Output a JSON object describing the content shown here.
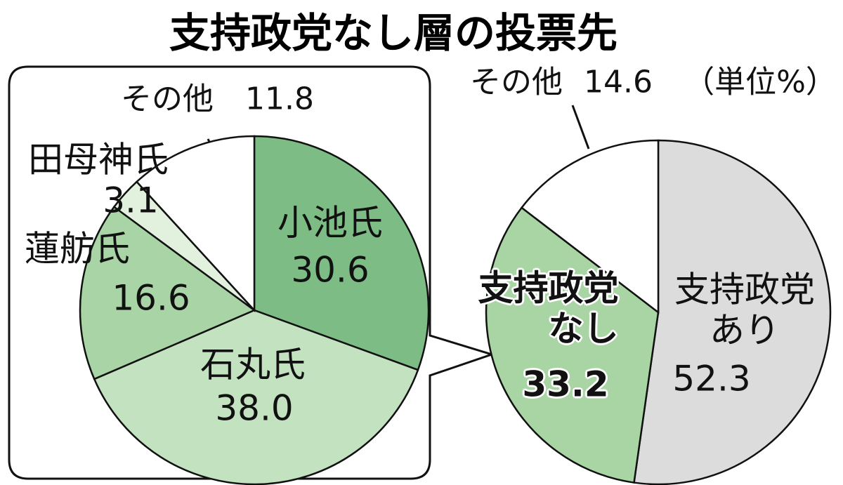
{
  "title": "支持政党なし層の投票先",
  "chart_data": [
    {
      "type": "pie",
      "categories": [
        "小池氏",
        "石丸氏",
        "蓮舫氏",
        "田母神氏",
        "その他"
      ],
      "values": [
        30.6,
        38.0,
        16.6,
        3.1,
        11.8
      ],
      "value_labels": [
        "30.6",
        "38.0",
        "16.6",
        "3.1",
        "11.8"
      ],
      "colors": [
        "#7dbd85",
        "#c2e2c0",
        "#a9d4a6",
        "#e2f0de",
        "#ffffff"
      ]
    },
    {
      "type": "pie",
      "unit_note": "（単位%）",
      "categories": [
        "支持政党あり",
        "支持政党なし",
        "その他"
      ],
      "values": [
        52.3,
        33.2,
        14.6
      ],
      "value_labels": [
        "52.3",
        "33.2",
        "14.6"
      ],
      "colors": [
        "#dcdcdc",
        "#a9d5a5",
        "#ffffff"
      ]
    }
  ]
}
